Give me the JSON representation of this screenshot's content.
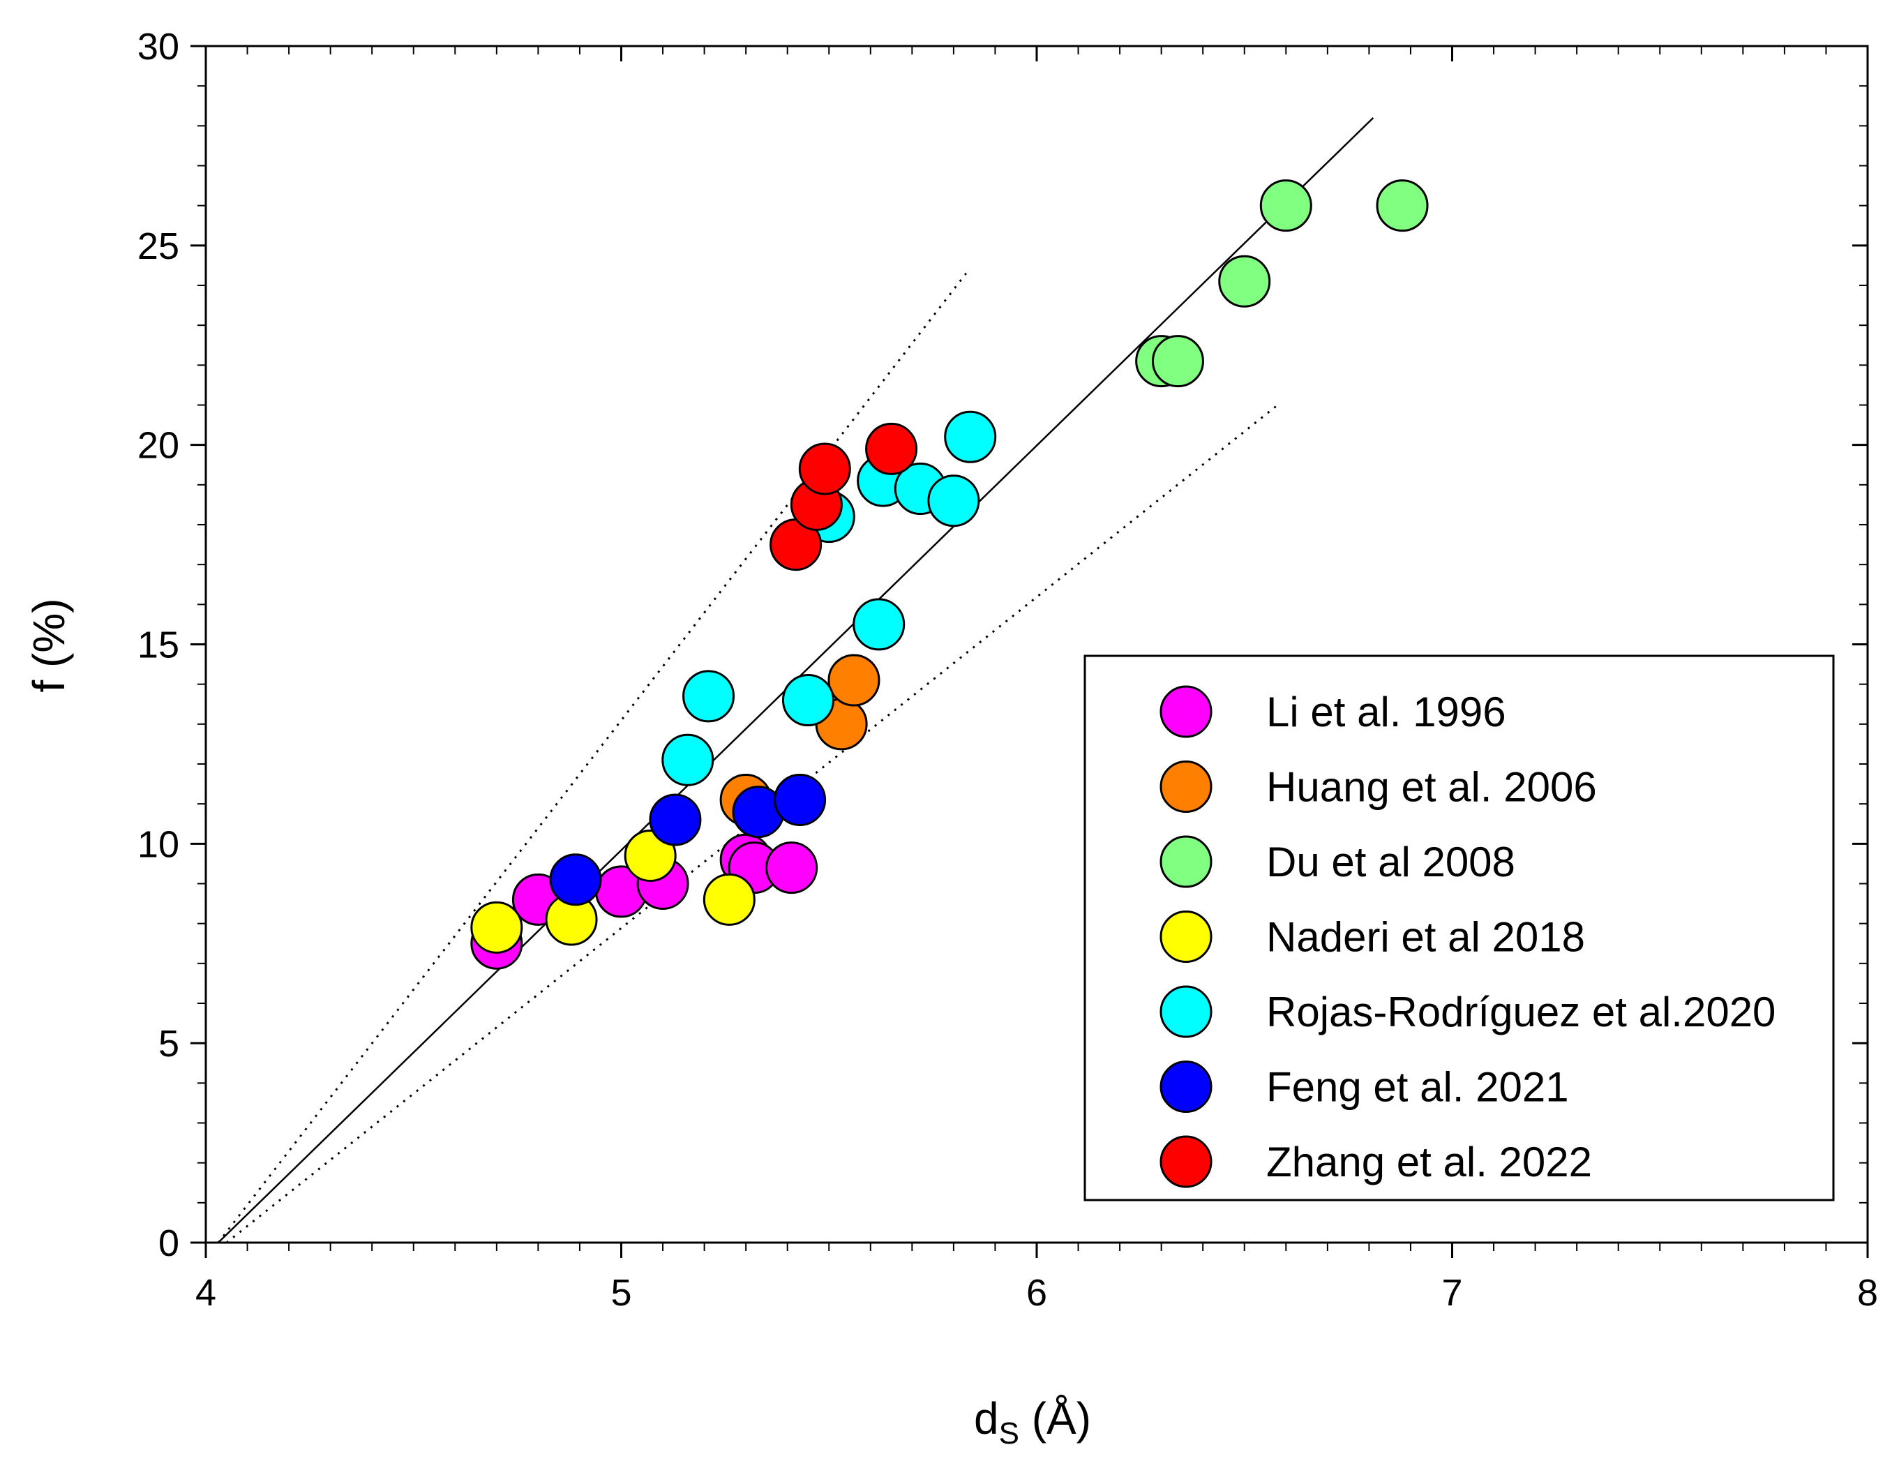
{
  "chart_data": {
    "type": "scatter",
    "title": "",
    "xlabel_main": "d",
    "xlabel_sub": "S",
    "xlabel_rest": " (Å)",
    "ylabel": "f (%)",
    "xlim": [
      4,
      8
    ],
    "ylim": [
      0,
      30
    ],
    "x_ticks": [
      4,
      5,
      6,
      7,
      8
    ],
    "y_ticks": [
      0,
      5,
      10,
      15,
      20,
      25,
      30
    ],
    "x_tick_labels": [
      "4",
      "5",
      "6",
      "7",
      "8"
    ],
    "y_tick_labels": [
      "0",
      "5",
      "10",
      "15",
      "20",
      "25",
      "30"
    ],
    "x_minor_step": 0.1,
    "y_minor_step": 1,
    "grid": false,
    "legend_position": "lower-right",
    "fit_lines": [
      {
        "name": "fit",
        "style": "solid",
        "points": [
          [
            4.03,
            0
          ],
          [
            6.81,
            28.2
          ]
        ]
      },
      {
        "name": "upper-bound",
        "style": "dotted",
        "points": [
          [
            4.03,
            0
          ],
          [
            5.83,
            24.3
          ]
        ]
      },
      {
        "name": "lower-bound",
        "style": "dotted",
        "points": [
          [
            4.05,
            0
          ],
          [
            6.58,
            21.0
          ]
        ]
      }
    ],
    "series": [
      {
        "name": "Li et al. 1996",
        "color": "#ff00ff",
        "points": [
          [
            4.7,
            7.5
          ],
          [
            4.8,
            8.6
          ],
          [
            5.0,
            8.8
          ],
          [
            5.1,
            9.0
          ],
          [
            5.3,
            9.6
          ],
          [
            5.32,
            9.4
          ],
          [
            5.41,
            9.4
          ]
        ]
      },
      {
        "name": "Huang et al. 2006",
        "color": "#ff8000",
        "points": [
          [
            5.3,
            11.1
          ],
          [
            5.53,
            13.0
          ],
          [
            5.56,
            14.1
          ]
        ]
      },
      {
        "name": "Du et al 2008",
        "color": "#80ff80",
        "points": [
          [
            6.3,
            22.1
          ],
          [
            6.34,
            22.1
          ],
          [
            6.5,
            24.1
          ],
          [
            6.6,
            26.0
          ],
          [
            6.88,
            26.0
          ]
        ]
      },
      {
        "name": "Naderi et al 2018",
        "color": "#ffff00",
        "points": [
          [
            4.7,
            7.9
          ],
          [
            4.88,
            8.1
          ],
          [
            5.07,
            9.7
          ],
          [
            5.26,
            8.6
          ]
        ]
      },
      {
        "name": "Rojas-Rodríguez et al.2020",
        "color": "#00ffff",
        "points": [
          [
            5.16,
            12.1
          ],
          [
            5.21,
            13.7
          ],
          [
            5.45,
            13.6
          ],
          [
            5.5,
            18.2
          ],
          [
            5.63,
            19.1
          ],
          [
            5.62,
            15.5
          ],
          [
            5.72,
            18.9
          ],
          [
            5.8,
            18.6
          ],
          [
            5.84,
            20.2
          ]
        ]
      },
      {
        "name": "Feng et al. 2021",
        "color": "#0000ff",
        "points": [
          [
            4.89,
            9.1
          ],
          [
            5.13,
            10.6
          ],
          [
            5.33,
            10.8
          ],
          [
            5.43,
            11.1
          ]
        ]
      },
      {
        "name": "Zhang et al. 2022",
        "color": "#ff0000",
        "points": [
          [
            5.42,
            17.5
          ],
          [
            5.47,
            18.5
          ],
          [
            5.49,
            19.4
          ],
          [
            5.65,
            19.9
          ]
        ]
      }
    ]
  }
}
